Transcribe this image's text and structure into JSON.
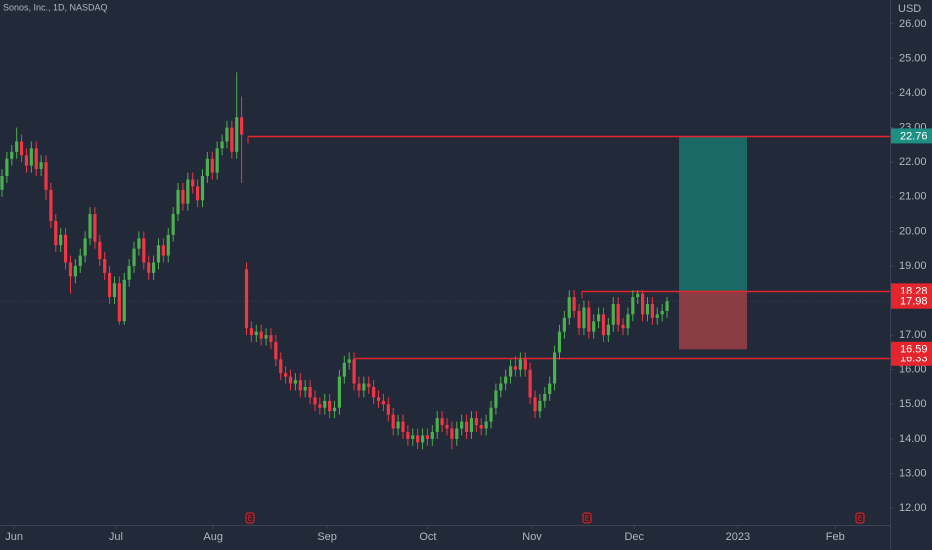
{
  "chart_data": {
    "type": "candlestick",
    "title": "Sonos, Inc., 1D, NASDAQ",
    "currency": "USD",
    "open": [
      21.2,
      21.6,
      22.1,
      22.3,
      22.6,
      22.2,
      21.9,
      22.4,
      21.8,
      22.0,
      21.2,
      20.3,
      19.6,
      19.9,
      19.1,
      18.7,
      19.0,
      19.3,
      19.8,
      20.5,
      19.7,
      19.2,
      18.8,
      18.1,
      18.5,
      17.4,
      18.6,
      19.0,
      19.5,
      19.8,
      19.1,
      18.8,
      19.1,
      19.6,
      19.3,
      19.9,
      20.5,
      21.2,
      20.8,
      21.5,
      21.3,
      20.9,
      21.6,
      22.1,
      21.7,
      22.4,
      22.6,
      23.0,
      22.3,
      23.3,
      18.9,
      17.2,
      17.0,
      17.1,
      16.9,
      17.0,
      16.8,
      16.3,
      15.9,
      15.8,
      15.6,
      15.7,
      15.4,
      15.5,
      15.2,
      15.0,
      14.9,
      15.1,
      14.8,
      14.9,
      15.8,
      16.2,
      16.3,
      15.6,
      15.4,
      15.6,
      15.5,
      15.2,
      15.1,
      15.0,
      14.7,
      14.3,
      14.5,
      14.2,
      14.0,
      14.1,
      13.9,
      14.1,
      14.0,
      14.2,
      14.6,
      14.4,
      14.3,
      14.0,
      14.3,
      14.5,
      14.2,
      14.6,
      14.4,
      14.3,
      14.5,
      14.9,
      15.4,
      15.6,
      15.8,
      16.1,
      16.0,
      16.3,
      16.0,
      15.2,
      14.8,
      15.1,
      15.3,
      15.6,
      16.5,
      17.1,
      17.5,
      18.1,
      17.7,
      17.2,
      17.8,
      17.1,
      17.4,
      17.6,
      17.0,
      17.3,
      17.9,
      17.3,
      17.2,
      17.6,
      18.1,
      18.2,
      17.6,
      17.9,
      17.5,
      17.6,
      17.7
    ],
    "high": [
      21.8,
      22.3,
      22.5,
      23.0,
      22.8,
      22.4,
      22.6,
      22.6,
      22.2,
      22.2,
      21.4,
      20.5,
      20.1,
      20.1,
      19.3,
      19.2,
      19.5,
      20.0,
      20.7,
      20.7,
      19.9,
      19.4,
      19.0,
      18.7,
      18.7,
      18.8,
      19.2,
      19.7,
      20.0,
      20.0,
      19.3,
      19.3,
      19.8,
      19.8,
      20.1,
      20.7,
      21.4,
      21.4,
      21.7,
      21.7,
      21.5,
      21.8,
      22.3,
      22.3,
      22.6,
      22.8,
      23.2,
      23.2,
      24.6,
      23.9,
      19.1,
      17.4,
      17.3,
      17.3,
      17.2,
      17.2,
      17.0,
      16.5,
      16.1,
      16.0,
      15.9,
      15.9,
      15.7,
      15.7,
      15.4,
      15.2,
      15.3,
      15.3,
      15.1,
      16.0,
      16.4,
      16.5,
      16.5,
      15.8,
      15.8,
      15.8,
      15.7,
      15.4,
      15.3,
      15.2,
      14.9,
      14.7,
      14.7,
      14.4,
      14.3,
      14.3,
      14.3,
      14.3,
      14.4,
      14.8,
      14.8,
      14.6,
      14.5,
      14.5,
      14.7,
      14.7,
      14.8,
      14.8,
      14.6,
      14.7,
      15.1,
      15.6,
      15.8,
      16.0,
      16.3,
      16.4,
      16.5,
      16.5,
      16.2,
      15.4,
      15.3,
      15.5,
      15.8,
      16.7,
      17.3,
      17.7,
      18.3,
      18.3,
      17.9,
      18.0,
      18.0,
      17.6,
      17.8,
      17.8,
      17.5,
      18.1,
      18.1,
      17.5,
      17.8,
      18.3,
      18.3,
      18.3,
      18.1,
      18.1,
      17.8,
      17.9,
      18.1
    ],
    "low": [
      21.0,
      21.4,
      21.9,
      22.1,
      22.0,
      21.7,
      21.7,
      21.6,
      21.6,
      20.9,
      20.1,
      19.4,
      19.4,
      18.9,
      18.2,
      18.5,
      18.8,
      19.1,
      19.6,
      19.5,
      19.0,
      18.6,
      17.9,
      17.9,
      17.3,
      17.3,
      18.4,
      18.8,
      19.3,
      18.9,
      18.6,
      18.6,
      18.9,
      19.1,
      19.1,
      19.7,
      20.3,
      20.6,
      20.6,
      21.1,
      20.7,
      20.7,
      21.4,
      21.5,
      21.5,
      22.2,
      22.4,
      22.1,
      22.1,
      21.4,
      17.0,
      16.8,
      16.8,
      16.7,
      16.7,
      16.6,
      16.1,
      15.7,
      15.6,
      15.4,
      15.4,
      15.2,
      15.2,
      15.0,
      14.8,
      14.7,
      14.7,
      14.6,
      14.6,
      14.7,
      15.6,
      16.0,
      15.4,
      15.2,
      15.2,
      15.3,
      15.0,
      14.9,
      14.8,
      14.5,
      14.1,
      14.1,
      14.0,
      13.8,
      13.8,
      13.7,
      13.7,
      13.8,
      13.8,
      14.0,
      14.2,
      14.1,
      13.7,
      13.8,
      14.1,
      14.0,
      14.0,
      14.2,
      14.1,
      14.1,
      14.3,
      14.7,
      15.2,
      15.4,
      15.6,
      15.8,
      15.8,
      15.8,
      15.0,
      14.6,
      14.6,
      14.9,
      15.1,
      15.4,
      16.3,
      16.9,
      17.3,
      17.5,
      17.0,
      17.0,
      16.9,
      16.9,
      17.2,
      16.8,
      16.8,
      17.1,
      17.1,
      17.0,
      17.0,
      17.4,
      17.9,
      17.4,
      17.4,
      17.3,
      17.3,
      17.4,
      17.5
    ],
    "close": [
      21.6,
      22.1,
      22.3,
      22.6,
      22.2,
      21.9,
      22.4,
      21.8,
      22.0,
      21.2,
      20.3,
      19.6,
      19.9,
      19.1,
      18.7,
      19.0,
      19.3,
      19.8,
      20.5,
      19.7,
      19.2,
      18.8,
      18.1,
      18.5,
      17.4,
      18.6,
      19.0,
      19.5,
      19.8,
      19.1,
      18.8,
      19.1,
      19.6,
      19.3,
      19.9,
      20.5,
      21.2,
      20.8,
      21.5,
      21.3,
      20.9,
      21.6,
      22.1,
      21.7,
      22.4,
      22.6,
      23.0,
      22.3,
      23.3,
      22.8,
      17.2,
      17.0,
      17.1,
      16.9,
      17.0,
      16.8,
      16.3,
      15.9,
      15.8,
      15.6,
      15.7,
      15.4,
      15.5,
      15.2,
      15.0,
      14.9,
      15.1,
      14.8,
      14.9,
      15.8,
      16.2,
      16.3,
      15.6,
      15.4,
      15.6,
      15.5,
      15.2,
      15.1,
      15.0,
      14.7,
      14.3,
      14.5,
      14.2,
      14.0,
      14.1,
      13.9,
      14.1,
      14.0,
      14.2,
      14.6,
      14.4,
      14.3,
      14.0,
      14.3,
      14.5,
      14.2,
      14.6,
      14.4,
      14.3,
      14.5,
      14.9,
      15.4,
      15.6,
      15.8,
      16.1,
      16.0,
      16.3,
      16.0,
      15.2,
      14.8,
      15.1,
      15.3,
      15.6,
      16.5,
      17.1,
      17.5,
      18.1,
      17.7,
      17.2,
      17.8,
      17.1,
      17.4,
      17.6,
      17.0,
      17.3,
      17.9,
      17.3,
      17.2,
      17.6,
      18.1,
      18.2,
      17.6,
      17.9,
      17.5,
      17.6,
      17.7,
      17.98
    ],
    "up_color": "#4caf50",
    "down_color": "#f23645",
    "ylim": [
      11.51,
      26.69
    ],
    "yticks": [
      {
        "value": 12,
        "label": "12.00"
      },
      {
        "value": 13,
        "label": "13.00"
      },
      {
        "value": 14,
        "label": "14.00"
      },
      {
        "value": 15,
        "label": "15.00"
      },
      {
        "value": 16,
        "label": "16.00"
      },
      {
        "value": 17,
        "label": "17.00"
      },
      {
        "value": 18,
        "label": "18.00"
      },
      {
        "value": 19,
        "label": "19.00"
      },
      {
        "value": 20,
        "label": "20.00"
      },
      {
        "value": 21,
        "label": "21.00"
      },
      {
        "value": 22,
        "label": "22.00"
      },
      {
        "value": 23,
        "label": "23.00"
      },
      {
        "value": 24,
        "label": "24.00"
      },
      {
        "value": 25,
        "label": "25.00"
      },
      {
        "value": 26,
        "label": "26.00"
      }
    ],
    "xlim": [
      0,
      182
    ],
    "xticks": [
      {
        "value": 2.9,
        "label": "Jun"
      },
      {
        "value": 23.7,
        "label": "Jul"
      },
      {
        "value": 43.6,
        "label": "Aug"
      },
      {
        "value": 66.9,
        "label": "Sep"
      },
      {
        "value": 87.5,
        "label": "Oct"
      },
      {
        "value": 108.8,
        "label": "Nov"
      },
      {
        "value": 129.7,
        "label": "Dec"
      },
      {
        "value": 150.9,
        "label": "2023"
      },
      {
        "value": 170.8,
        "label": "Feb"
      }
    ],
    "levels": [
      22.76,
      18.28,
      16.33
    ],
    "last_price": 17.98,
    "position": {
      "entry": 18.28,
      "target": 22.76,
      "stop": 16.59
    },
    "events": [
      "E",
      "E",
      "E"
    ]
  }
}
